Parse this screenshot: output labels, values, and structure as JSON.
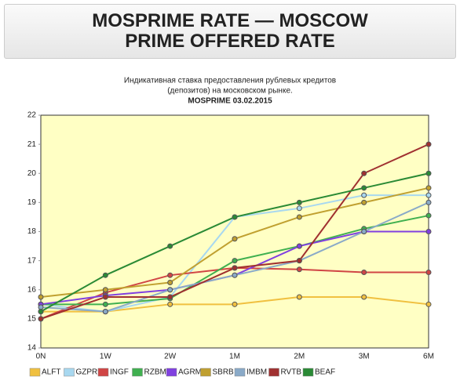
{
  "header": {
    "title": "MOSPRIME RATE — MOSCOW PRIME OFFERED RATE"
  },
  "chart_data": {
    "type": "line",
    "subtitle": [
      "Индикативная ставка предоставления рублевых кредитов",
      "(депозитов) на московском рынке."
    ],
    "title": "MOSPRIME 03.02.2015",
    "categories": [
      "0N",
      "1W",
      "2W",
      "1M",
      "2M",
      "3M",
      "6M"
    ],
    "ylim": [
      14,
      22
    ],
    "yticks": [
      14,
      15,
      16,
      17,
      18,
      19,
      20,
      21,
      22
    ],
    "grid": false,
    "legend": "bottom",
    "series": [
      {
        "name": "ALFT",
        "color": "#f0c040",
        "values": [
          15.25,
          15.25,
          15.5,
          15.5,
          15.75,
          15.75,
          15.5
        ]
      },
      {
        "name": "GZPR",
        "color": "#a8d8f0",
        "values": [
          15.5,
          15.25,
          15.75,
          18.5,
          18.8,
          19.25,
          19.25
        ]
      },
      {
        "name": "INGF",
        "color": "#d04545",
        "values": [
          15.0,
          15.9,
          16.5,
          16.75,
          16.7,
          16.6,
          16.6
        ]
      },
      {
        "name": "RZBM",
        "color": "#40b050",
        "values": [
          15.5,
          15.5,
          15.7,
          17.0,
          17.5,
          18.1,
          18.55
        ]
      },
      {
        "name": "AGRM",
        "color": "#8040e0",
        "values": [
          15.5,
          15.8,
          16.0,
          16.5,
          17.5,
          18.0,
          18.0
        ]
      },
      {
        "name": "SBRB",
        "color": "#c0a030",
        "values": [
          15.75,
          16.0,
          16.25,
          17.75,
          18.5,
          19.0,
          19.5
        ]
      },
      {
        "name": "IMBM",
        "color": "#8aaac8",
        "values": [
          15.4,
          15.25,
          16.0,
          16.5,
          17.0,
          18.0,
          19.0
        ]
      },
      {
        "name": "RVTB",
        "color": "#a03030",
        "values": [
          15.0,
          15.75,
          15.75,
          16.75,
          17.0,
          20.0,
          21.0
        ]
      },
      {
        "name": "BEAF",
        "color": "#2a8a35",
        "values": [
          15.25,
          16.5,
          17.5,
          18.5,
          19.0,
          19.5,
          20.0
        ]
      }
    ]
  }
}
